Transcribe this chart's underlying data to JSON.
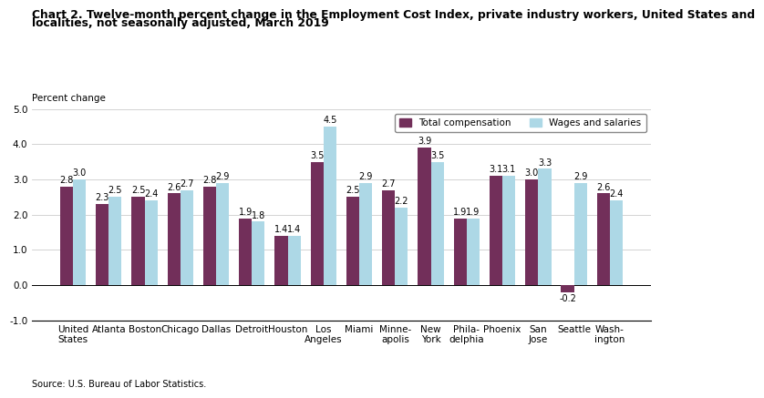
{
  "title_line1": "Chart 2. Twelve-month percent change in the Employment Cost Index, private industry workers, United States and",
  "title_line2": "localities, not seasonally adjusted, March 2019",
  "ylabel_text": "Percent change",
  "source": "Source: U.S. Bureau of Labor Statistics.",
  "categories": [
    "United\nStates",
    "Atlanta",
    "Boston",
    "Chicago",
    "Dallas",
    "Detroit",
    "Houston",
    "Los\nAngeles",
    "Miami",
    "Minne-\napolis",
    "New\nYork",
    "Phila-\ndelphia",
    "Phoenix",
    "San\nJose",
    "Seattle",
    "Wash-\nington"
  ],
  "total_compensation": [
    2.8,
    2.3,
    2.5,
    2.6,
    2.8,
    1.9,
    1.4,
    3.5,
    2.5,
    2.7,
    3.9,
    1.9,
    3.1,
    3.0,
    -0.2,
    2.6
  ],
  "wages_and_salaries": [
    3.0,
    2.5,
    2.4,
    2.7,
    2.9,
    1.8,
    1.4,
    4.5,
    2.9,
    2.2,
    3.5,
    1.9,
    3.1,
    3.3,
    2.9,
    2.4
  ],
  "color_total": "#722F5A",
  "color_wages": "#ADD8E6",
  "ylim": [
    -1.0,
    5.0
  ],
  "yticks": [
    -1.0,
    0.0,
    1.0,
    2.0,
    3.0,
    4.0,
    5.0
  ],
  "legend_total": "Total compensation",
  "legend_wages": "Wages and salaries",
  "title_fontsize": 8.8,
  "label_fontsize": 7.0,
  "tick_fontsize": 7.5,
  "bar_width": 0.36
}
